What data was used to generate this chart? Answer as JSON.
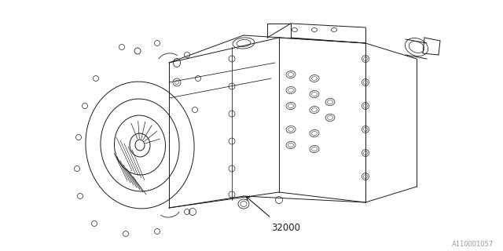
{
  "bg_color": "#ffffff",
  "line_color": "#1a1a1a",
  "lw": 0.7,
  "part_number": "32000",
  "diagram_id": "A110001057",
  "figsize": [
    6.4,
    3.2
  ],
  "dpi": 100,
  "xlim": [
    0,
    640
  ],
  "ylim": [
    0,
    320
  ]
}
